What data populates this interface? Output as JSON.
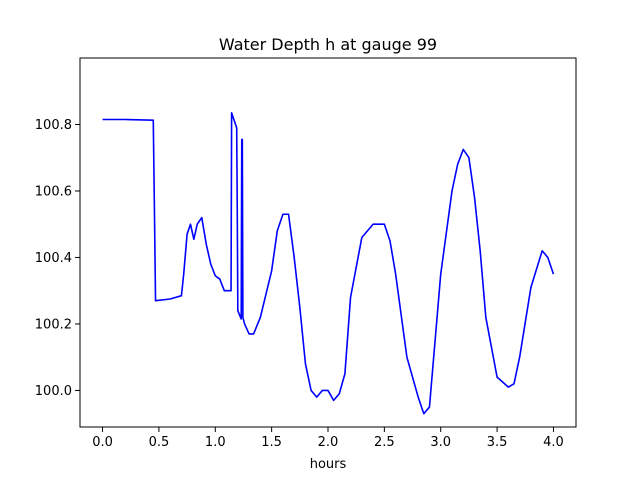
{
  "chart_data": {
    "type": "line",
    "title": "Water Depth h at gauge 99",
    "xlabel": "hours",
    "ylabel": "",
    "xlim": [
      -0.2,
      4.2
    ],
    "ylim": [
      99.89,
      101.0
    ],
    "xticks": [
      0.0,
      0.5,
      1.0,
      1.5,
      2.0,
      2.5,
      3.0,
      3.5,
      4.0
    ],
    "xtick_labels": [
      "0.0",
      "0.5",
      "1.0",
      "1.5",
      "2.0",
      "2.5",
      "3.0",
      "3.5",
      "4.0"
    ],
    "yticks": [
      100.0,
      100.2,
      100.4,
      100.6,
      100.8
    ],
    "ytick_labels": [
      "100.0",
      "100.2",
      "100.4",
      "100.6",
      "100.8"
    ],
    "grid": false,
    "legend": "none",
    "line_color": "#0000ff",
    "series": [
      {
        "x": [
          0.0,
          0.2,
          0.45,
          0.46,
          0.47,
          0.6,
          0.7,
          0.72,
          0.75,
          0.78,
          0.81,
          0.84,
          0.88,
          0.92,
          0.96,
          1.0,
          1.04,
          1.08,
          1.12,
          1.14,
          1.145,
          1.16,
          1.19,
          1.195,
          1.2,
          1.23,
          1.235,
          1.24,
          1.245,
          1.26,
          1.3,
          1.34,
          1.4,
          1.5,
          1.55,
          1.6,
          1.65,
          1.7,
          1.75,
          1.8,
          1.85,
          1.9,
          1.95,
          2.0,
          2.05,
          2.1,
          2.15,
          2.2,
          2.3,
          2.4,
          2.5,
          2.55,
          2.6,
          2.7,
          2.8,
          2.85,
          2.9,
          3.0,
          3.1,
          3.15,
          3.2,
          3.25,
          3.3,
          3.35,
          3.4,
          3.5,
          3.6,
          3.65,
          3.7,
          3.8,
          3.9,
          3.95,
          4.0
        ],
        "y": [
          100.815,
          100.815,
          100.813,
          100.55,
          100.27,
          100.275,
          100.285,
          100.35,
          100.47,
          100.5,
          100.455,
          100.5,
          100.52,
          100.44,
          100.38,
          100.345,
          100.335,
          100.3,
          100.3,
          100.3,
          100.835,
          100.82,
          100.79,
          100.55,
          100.24,
          100.215,
          100.755,
          100.755,
          100.22,
          100.2,
          100.17,
          100.17,
          100.22,
          100.36,
          100.48,
          100.53,
          100.53,
          100.4,
          100.25,
          100.08,
          100.0,
          99.98,
          100.0,
          100.0,
          99.97,
          99.99,
          100.05,
          100.28,
          100.46,
          100.5,
          100.5,
          100.45,
          100.35,
          100.1,
          99.98,
          99.93,
          99.95,
          100.35,
          100.6,
          100.68,
          100.725,
          100.7,
          100.58,
          100.42,
          100.22,
          100.04,
          100.01,
          100.02,
          100.1,
          100.31,
          100.42,
          100.4,
          100.35
        ]
      }
    ]
  }
}
